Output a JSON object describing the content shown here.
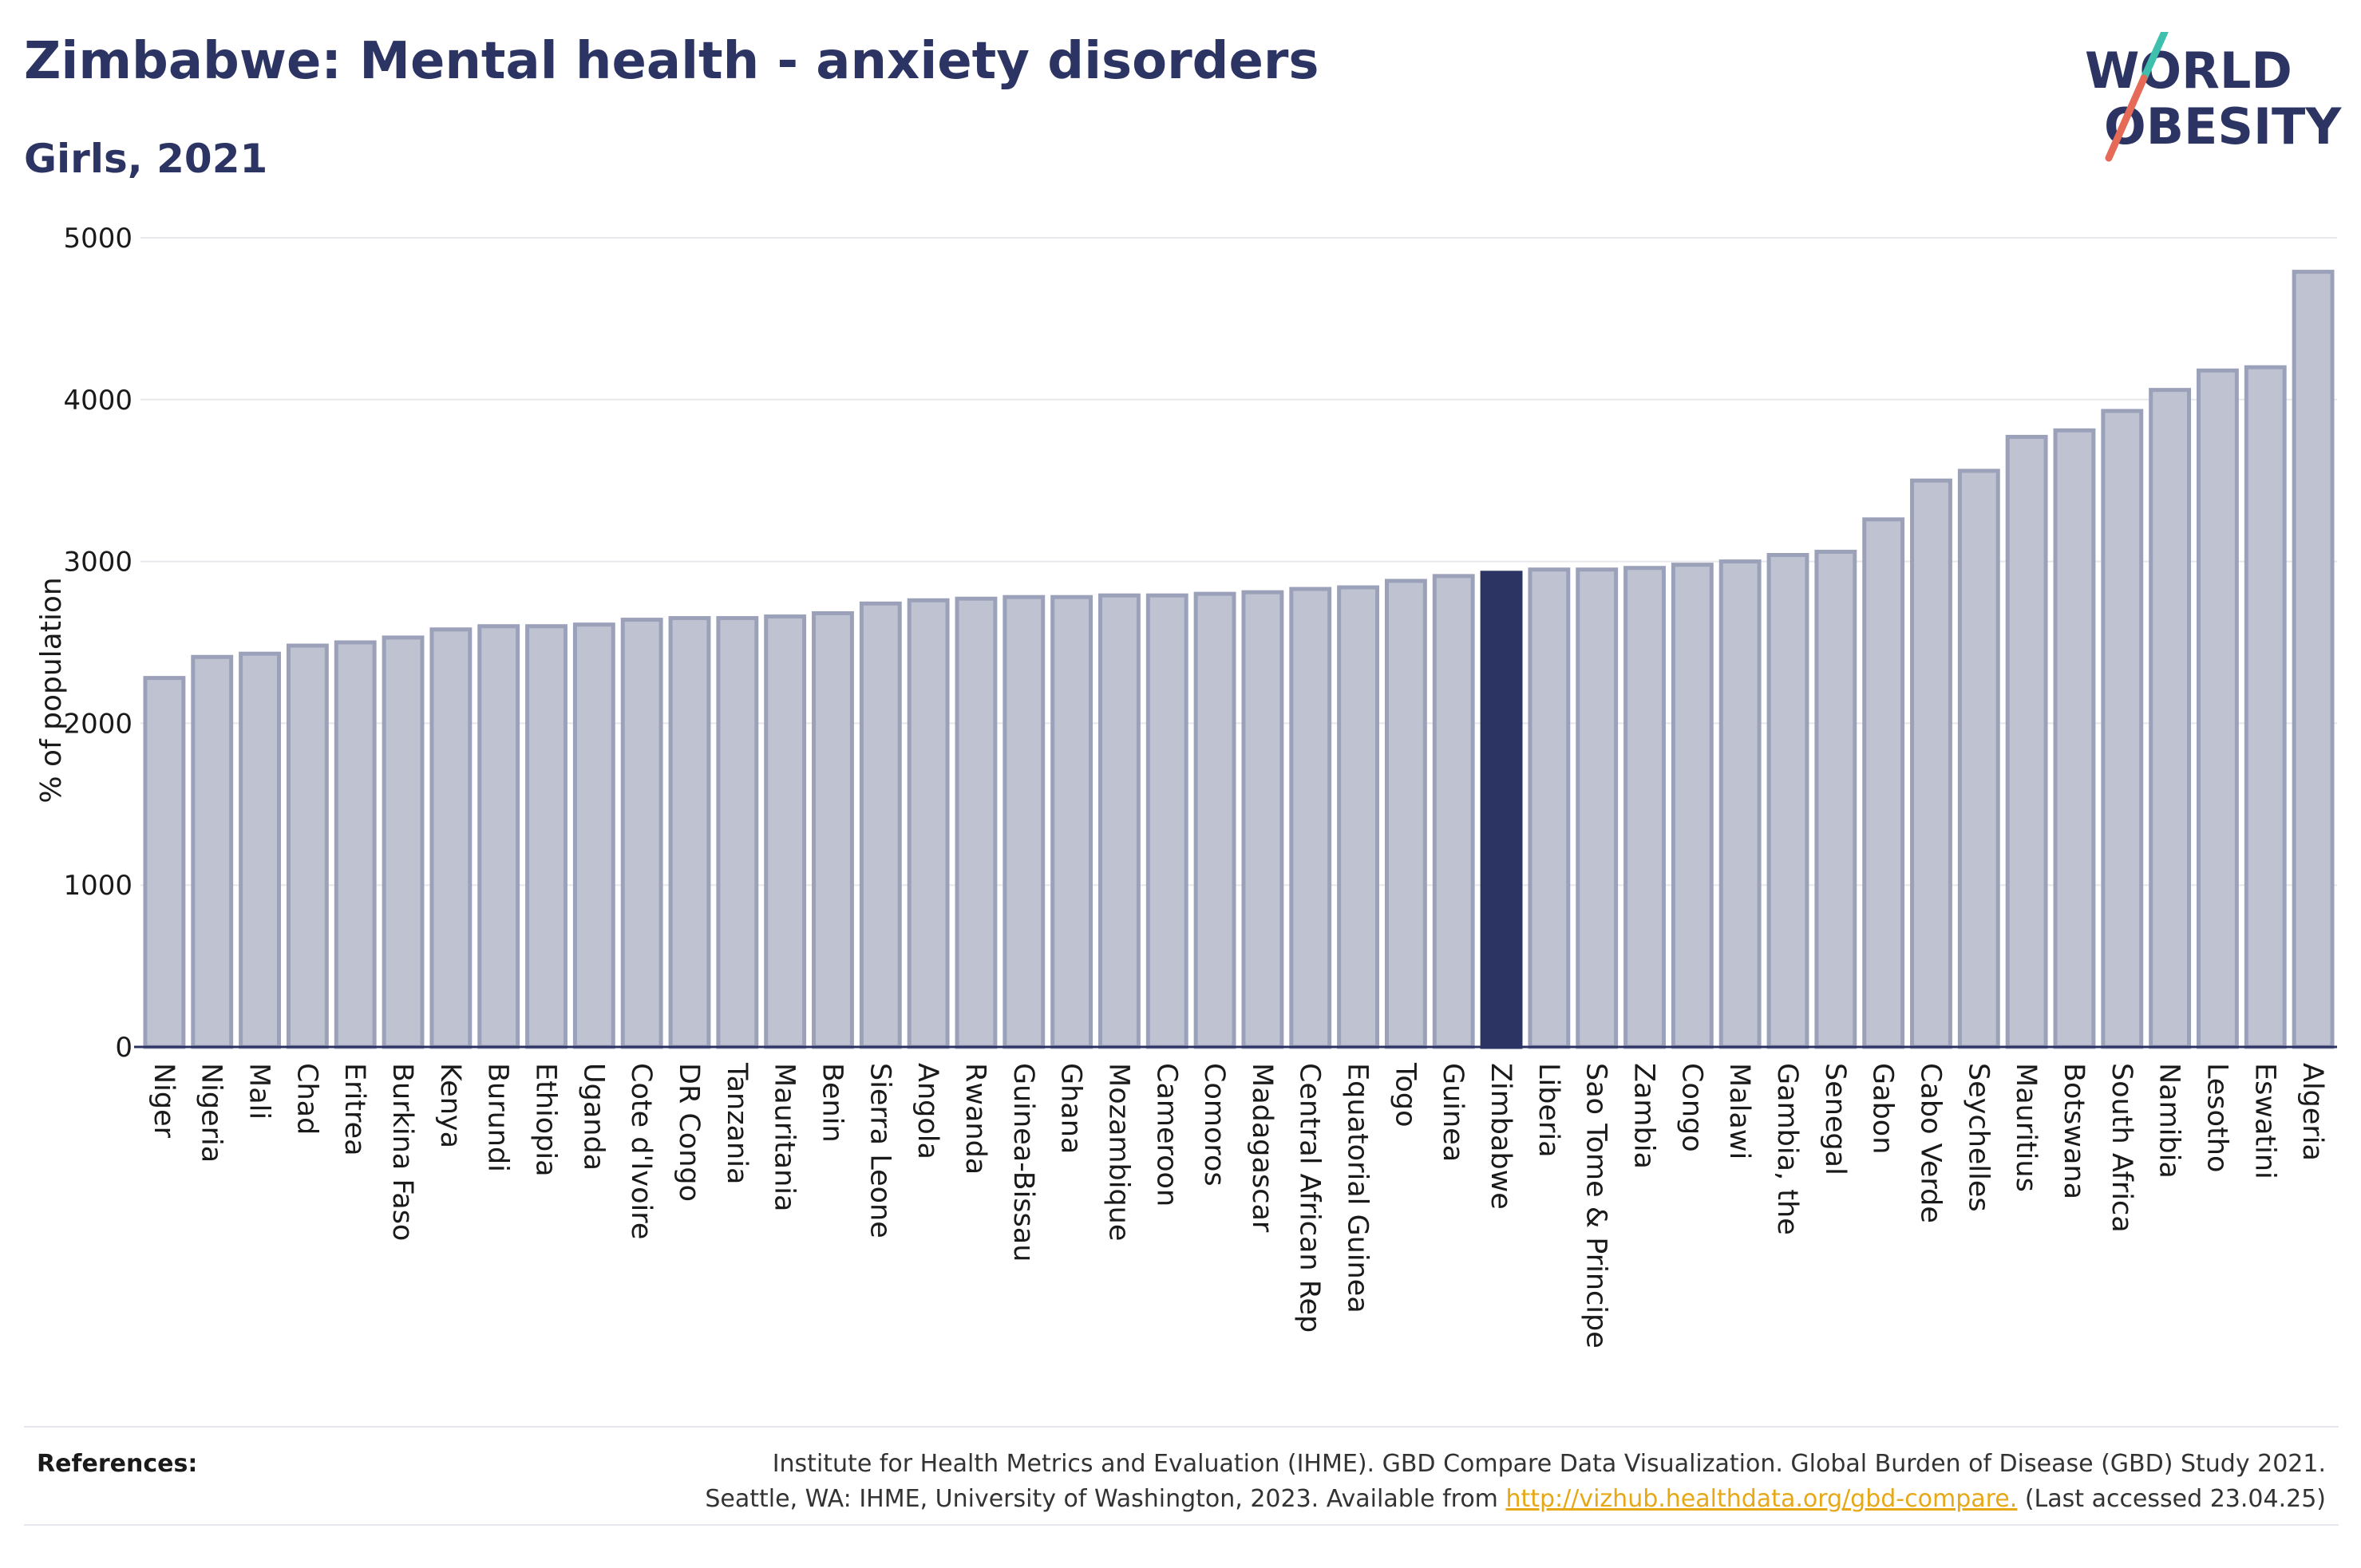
{
  "header": {
    "title": "Zimbabwe: Mental health - anxiety disorders",
    "subtitle": "Girls, 2021"
  },
  "logo": {
    "line1": "WORLD",
    "line2": "OBESITY"
  },
  "colors": {
    "bar_default": "#bec2d1",
    "bar_default_edge": "#9ca1ba",
    "bar_highlight": "#2b3462",
    "text_dark": "#2b3462",
    "link": "#e6a817",
    "logo_teal": "#3fbfad",
    "logo_coral": "#e56a57"
  },
  "chart_data": {
    "type": "bar",
    "title": "Zimbabwe: Mental health - anxiety disorders",
    "subtitle": "Girls, 2021",
    "ylabel": "% of population",
    "ylim": [
      0,
      5000
    ],
    "yticks": [
      0,
      1000,
      2000,
      3000,
      4000,
      5000
    ],
    "grid": true,
    "highlight": "Zimbabwe",
    "categories": [
      "Niger",
      "Nigeria",
      "Mali",
      "Chad",
      "Eritrea",
      "Burkina Faso",
      "Kenya",
      "Burundi",
      "Ethiopia",
      "Uganda",
      "Cote d'Ivoire",
      "DR Congo",
      "Tanzania",
      "Mauritania",
      "Benin",
      "Sierra Leone",
      "Angola",
      "Rwanda",
      "Guinea-Bissau",
      "Ghana",
      "Mozambique",
      "Cameroon",
      "Comoros",
      "Madagascar",
      "Central African Rep",
      "Equatorial Guinea",
      "Togo",
      "Guinea",
      "Zimbabwe",
      "Liberia",
      "Sao Tome & Principe",
      "Zambia",
      "Congo",
      "Malawi",
      "Gambia, the",
      "Senegal",
      "Gabon",
      "Cabo Verde",
      "Seychelles",
      "Mauritius",
      "Botswana",
      "South Africa",
      "Namibia",
      "Lesotho",
      "Eswatini",
      "Algeria"
    ],
    "values": [
      2280,
      2410,
      2430,
      2480,
      2500,
      2530,
      2580,
      2600,
      2600,
      2610,
      2640,
      2650,
      2650,
      2660,
      2680,
      2740,
      2760,
      2770,
      2780,
      2780,
      2790,
      2790,
      2800,
      2810,
      2830,
      2840,
      2880,
      2910,
      2930,
      2950,
      2950,
      2960,
      2980,
      3000,
      3040,
      3060,
      3260,
      3500,
      3560,
      3770,
      3810,
      3930,
      4060,
      4180,
      4200,
      4790
    ]
  },
  "references": {
    "label": "References:",
    "line1": "Institute for Health Metrics and Evaluation (IHME). GBD Compare Data Visualization. Global Burden of Disease (GBD) Study 2021.",
    "line2_prefix": "Seattle, WA: IHME, University of Washington, 2023. Available from ",
    "link_text": "http://vizhub.healthdata.org/gbd-compare.",
    "line2_suffix": " (Last accessed 23.04.25)"
  }
}
